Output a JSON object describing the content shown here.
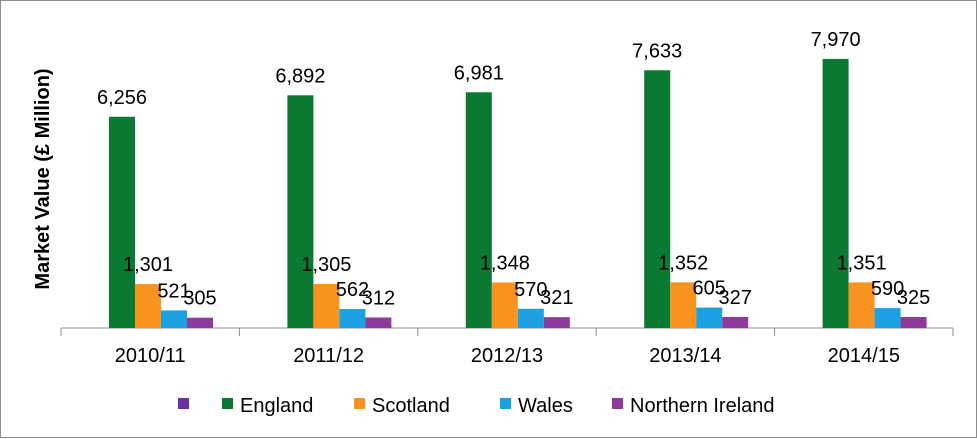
{
  "chart_data": {
    "type": "bar",
    "title": "",
    "xlabel": "",
    "ylabel": "Market Value (£ Million)",
    "ylim": [
      0,
      8500
    ],
    "grid": false,
    "legend_position": "bottom",
    "categories": [
      "2010/11",
      "2011/12",
      "2012/13",
      "2013/14",
      "2014/15"
    ],
    "series": [
      {
        "name": "England",
        "color": "#0a7a33",
        "values": [
          6256,
          6892,
          6981,
          7633,
          7970
        ],
        "labels": [
          "6,256",
          "6,892",
          "6,981",
          "7,633",
          "7,970"
        ]
      },
      {
        "name": "Scotland",
        "color": "#f7931e",
        "values": [
          1301,
          1305,
          1348,
          1352,
          1351
        ],
        "labels": [
          "1,301",
          "1,305",
          "1,348",
          "1,352",
          "1,351"
        ]
      },
      {
        "name": "Wales",
        "color": "#1ba1e2",
        "values": [
          521,
          562,
          570,
          605,
          590
        ],
        "labels": [
          "521",
          "562",
          "570",
          "605",
          "590"
        ]
      },
      {
        "name": "Northern Ireland",
        "color": "#8e3a9c",
        "values": [
          305,
          312,
          321,
          327,
          325
        ],
        "labels": [
          "305",
          "312",
          "321",
          "327",
          "325"
        ]
      }
    ],
    "legend_extra_marker_color": "#6a2fa0"
  }
}
